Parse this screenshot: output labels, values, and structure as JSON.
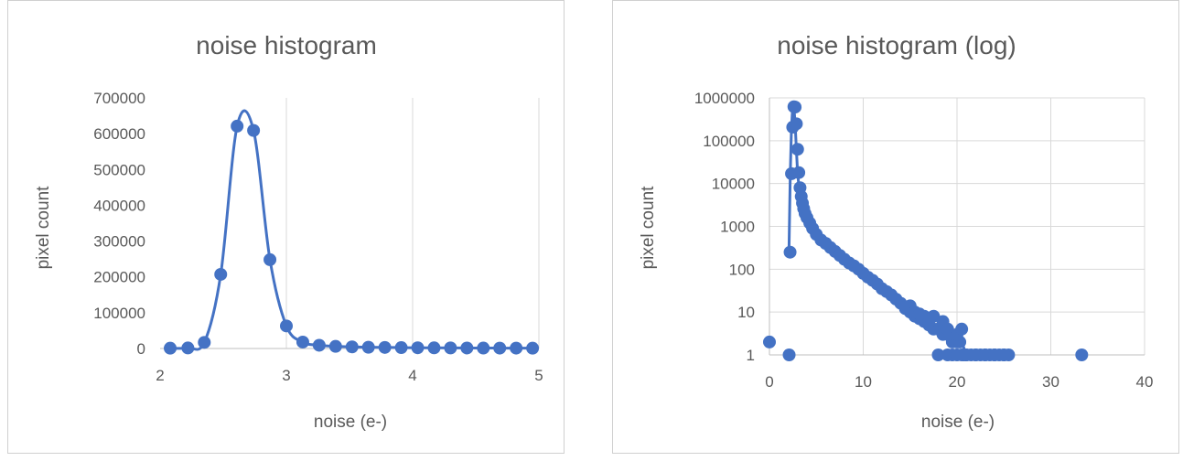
{
  "chart_data": [
    {
      "type": "scatter",
      "title": "noise histogram",
      "xlabel": "noise (e-)",
      "ylabel": "pixel count",
      "xlim": [
        2,
        5
      ],
      "ylim": [
        0,
        700000
      ],
      "xticks": [
        "2",
        "3",
        "4",
        "5"
      ],
      "yticks": [
        "0",
        "100000",
        "200000",
        "300000",
        "400000",
        "500000",
        "600000",
        "700000"
      ],
      "grid": "vertical",
      "line": "smooth",
      "color": "#4472c4",
      "x": [
        2.08,
        2.22,
        2.35,
        2.48,
        2.61,
        2.74,
        2.87,
        3.0,
        3.13,
        3.26,
        3.39,
        3.52,
        3.65,
        3.78,
        3.91,
        4.04,
        4.17,
        4.3,
        4.43,
        4.56,
        4.69,
        4.82,
        4.95
      ],
      "y": [
        800,
        1500,
        17000,
        207000,
        621000,
        609000,
        248000,
        63000,
        18000,
        9000,
        6000,
        4500,
        3500,
        3000,
        2500,
        2000,
        1800,
        1600,
        1400,
        1200,
        1100,
        1000,
        900
      ]
    },
    {
      "type": "scatter",
      "title": "noise histogram (log)",
      "xlabel": "noise (e-)",
      "ylabel": "pixel count",
      "xlim": [
        0,
        40
      ],
      "ylim": [
        1,
        1000000
      ],
      "yscale": "log",
      "xticks": [
        "0",
        "10",
        "20",
        "30",
        "40"
      ],
      "yticks": [
        "1",
        "10",
        "100",
        "1000",
        "10000",
        "100000",
        "1000000"
      ],
      "grid": "both",
      "color": "#4472c4",
      "line_x": [
        2.08,
        2.22,
        2.35,
        2.48,
        2.61,
        2.74,
        2.87,
        3.0,
        3.13,
        3.26,
        3.39,
        3.52,
        3.65,
        3.78,
        3.91,
        4.04,
        4.2,
        4.5,
        5,
        5.5,
        6,
        6.5,
        7,
        7.5,
        8,
        8.5,
        9,
        9.5,
        10,
        10.5,
        11,
        11.5,
        12,
        12.5,
        13,
        13.5,
        14,
        14.5,
        15,
        15.5,
        16,
        16.5,
        17,
        17.5,
        18,
        18.5,
        19,
        19.5,
        20,
        20.5,
        21
      ],
      "line_y": [
        250,
        17000,
        207000,
        621000,
        609000,
        248000,
        63000,
        18000,
        9000,
        5000,
        3500,
        2600,
        2100,
        1800,
        1500,
        1300,
        1100,
        900,
        650,
        480,
        400,
        320,
        260,
        210,
        170,
        140,
        120,
        100,
        80,
        65,
        55,
        45,
        35,
        30,
        25,
        20,
        16,
        13,
        10,
        8,
        7,
        6,
        5,
        4,
        4,
        3,
        3,
        2,
        2,
        2,
        1
      ],
      "x": [
        0,
        2.1,
        2.2,
        2.35,
        2.48,
        2.61,
        2.74,
        2.87,
        3.0,
        3.13,
        3.26,
        3.39,
        3.52,
        3.65,
        3.8,
        4.0,
        4.3,
        4.6,
        5,
        5.5,
        6,
        6.5,
        7,
        7.5,
        8,
        8.5,
        9,
        9.5,
        10,
        10.5,
        11,
        11.5,
        12,
        12.5,
        13,
        13.5,
        14,
        14.5,
        15,
        15.5,
        16,
        16.5,
        17,
        17.5,
        18,
        18.5,
        19,
        19.5,
        20,
        20.3,
        20.7,
        21,
        21.5,
        22,
        22.5,
        23,
        23.5,
        24,
        24.5,
        25,
        25.5,
        18,
        19,
        19.5,
        20,
        20.5,
        21,
        22,
        23,
        24,
        25,
        33.3,
        16.5,
        17,
        17.5,
        18.5,
        19,
        20,
        20.5,
        14.5,
        15,
        15.5,
        16
      ],
      "y": [
        2,
        1,
        250,
        17000,
        207000,
        621000,
        609000,
        248000,
        63000,
        18000,
        8000,
        5000,
        3500,
        2600,
        2000,
        1600,
        1200,
        900,
        650,
        480,
        400,
        320,
        260,
        210,
        170,
        140,
        120,
        100,
        80,
        65,
        55,
        45,
        35,
        30,
        25,
        20,
        16,
        13,
        10,
        8,
        7,
        6,
        5,
        4,
        4,
        3,
        3,
        2,
        2,
        2,
        1,
        1,
        1,
        1,
        1,
        1,
        1,
        1,
        1,
        1,
        1,
        1,
        1,
        1,
        1,
        1,
        1,
        1,
        1,
        1,
        1,
        1,
        8,
        6,
        8,
        6,
        4,
        3,
        4,
        12,
        14,
        10,
        9
      ]
    }
  ]
}
